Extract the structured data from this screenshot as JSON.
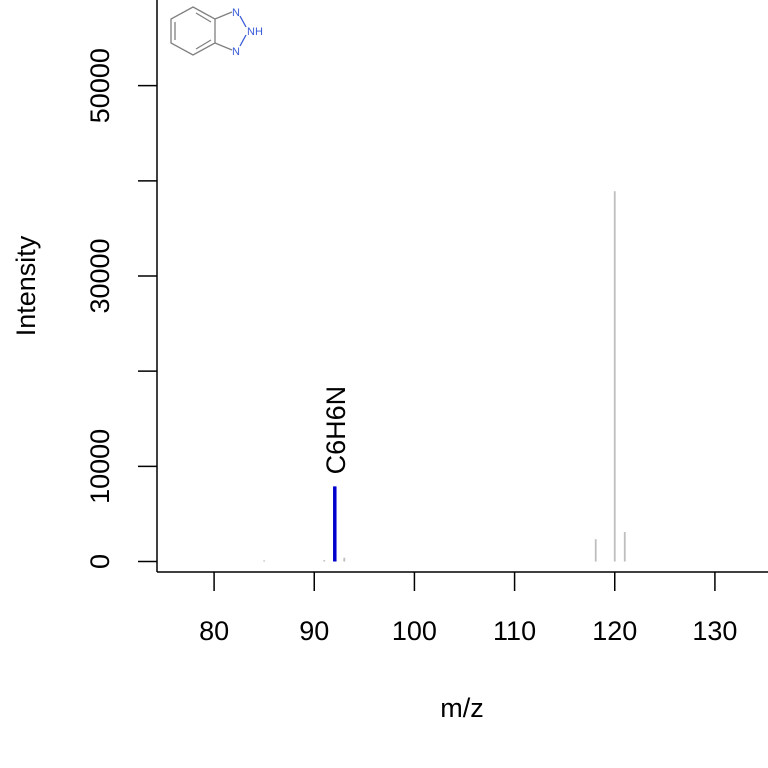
{
  "chart_data": {
    "type": "bar",
    "xlabel": "m/z",
    "ylabel": "Intensity",
    "xlim": [
      74.3,
      135.3
    ],
    "ylim": [
      -1100,
      59000
    ],
    "x_ticks": [
      80,
      90,
      100,
      110,
      120,
      130
    ],
    "y_ticks": [
      0,
      10000,
      20000,
      30000,
      40000,
      50000
    ],
    "y_tick_labels": [
      {
        "value": 0,
        "label": "0"
      },
      {
        "value": 10000,
        "label": "10000"
      },
      {
        "value": 30000,
        "label": "30000"
      },
      {
        "value": 50000,
        "label": "50000"
      }
    ],
    "series": [
      {
        "color": "#bebebe",
        "peaks": [
          {
            "mz": 85.0,
            "intensity": 120
          },
          {
            "mz": 91.0,
            "intensity": 150
          },
          {
            "mz": 93.0,
            "intensity": 400
          },
          {
            "mz": 118.1,
            "intensity": 2350
          },
          {
            "mz": 120.0,
            "intensity": 38900
          },
          {
            "mz": 121.0,
            "intensity": 3100
          }
        ]
      },
      {
        "color": "#0000cd",
        "peaks": [
          {
            "mz": 92.05,
            "intensity": 7900,
            "label": "C6H6N"
          }
        ]
      }
    ]
  },
  "structure": {
    "atoms": [
      "N",
      "NH",
      "N"
    ],
    "line_color": "#808080",
    "hetero_color": "#3a5bd9"
  }
}
